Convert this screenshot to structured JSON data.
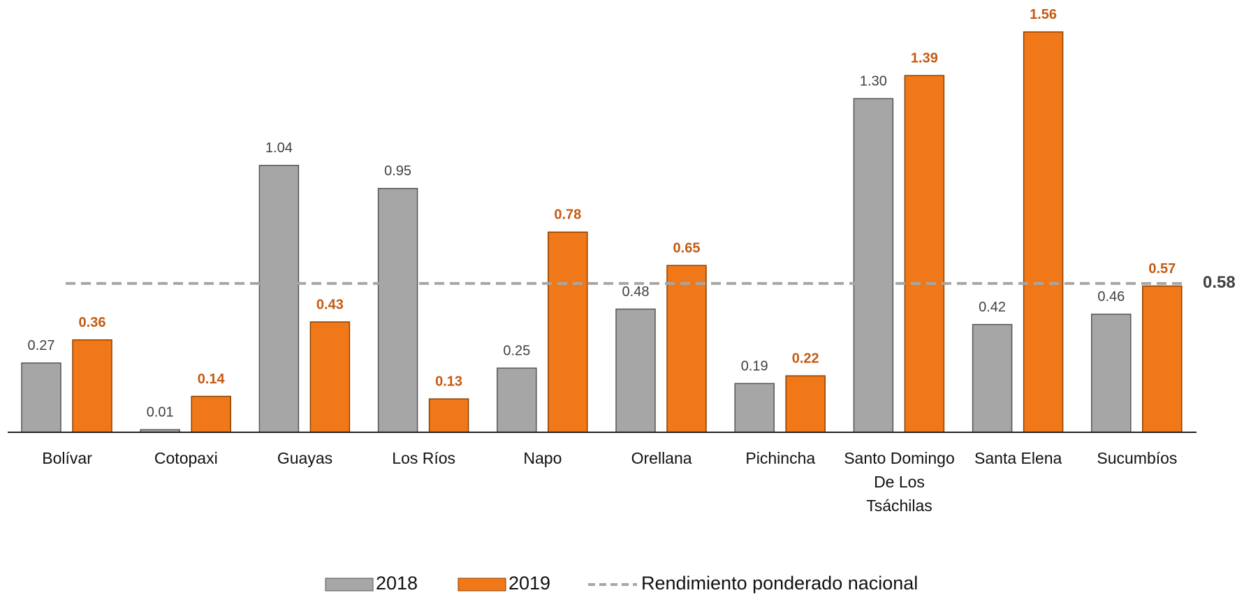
{
  "chart_data": {
    "type": "bar",
    "categories": [
      "Bolívar",
      "Cotopaxi",
      "Guayas",
      "Los Ríos",
      "Napo",
      "Orellana",
      "Pichincha",
      "Santo Domingo De Los Tsáchilas",
      "Santa Elena",
      "Sucumbíos"
    ],
    "series": [
      {
        "name": "2018",
        "color": "#a6a6a6",
        "label_color": "#404040",
        "values": [
          0.27,
          0.01,
          1.04,
          0.95,
          0.25,
          0.48,
          0.19,
          1.3,
          0.42,
          0.46
        ],
        "value_labels": [
          "0.27",
          "0.01",
          "1.04",
          "0.95",
          "0.25",
          "0.48",
          "0.19",
          "1.30",
          "0.42",
          "0.46"
        ]
      },
      {
        "name": "2019",
        "color": "#f07818",
        "label_color": "#c55a11",
        "values": [
          0.36,
          0.14,
          0.43,
          0.13,
          0.78,
          0.65,
          0.22,
          1.39,
          1.56,
          0.57
        ],
        "value_labels": [
          "0.36",
          "0.14",
          "0.43",
          "0.13",
          "0.78",
          "0.65",
          "0.22",
          "1.39",
          "1.56",
          "0.57"
        ]
      }
    ],
    "reference_line": {
      "name": "Rendimiento ponderado nacional",
      "value": 0.58,
      "color": "#a6a6a6"
    },
    "ylim": [
      0,
      1.6
    ],
    "grid": false
  }
}
